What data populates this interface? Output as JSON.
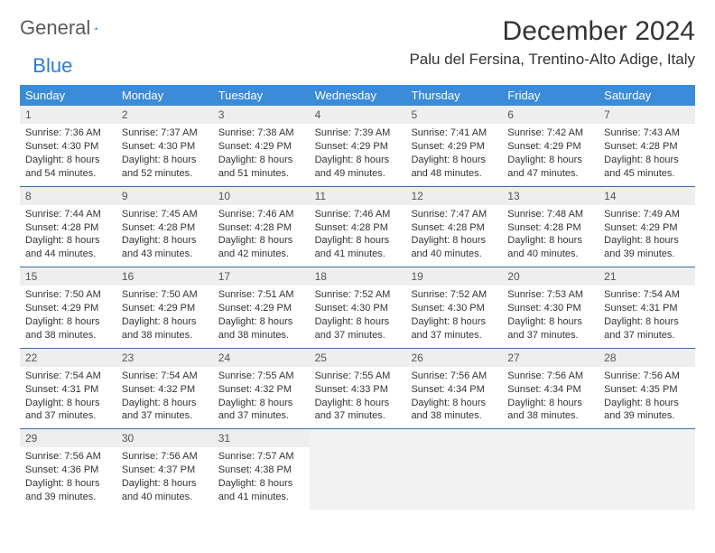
{
  "brand": {
    "part1": "General",
    "part2": "Blue"
  },
  "title": "December 2024",
  "location": "Palu del Fersina, Trentino-Alto Adige, Italy",
  "colors": {
    "header_bg": "#3a8bd8",
    "header_text": "#ffffff",
    "week_border": "#3a6ea5",
    "daynum_bg": "#eeeeee",
    "empty_bg": "#f2f2f2",
    "logo_gray": "#5a5a5a",
    "logo_blue": "#2b7cd3"
  },
  "daysOfWeek": [
    "Sunday",
    "Monday",
    "Tuesday",
    "Wednesday",
    "Thursday",
    "Friday",
    "Saturday"
  ],
  "weeks": [
    [
      {
        "n": "1",
        "sr": "7:36 AM",
        "ss": "4:30 PM",
        "dl": "8 hours and 54 minutes."
      },
      {
        "n": "2",
        "sr": "7:37 AM",
        "ss": "4:30 PM",
        "dl": "8 hours and 52 minutes."
      },
      {
        "n": "3",
        "sr": "7:38 AM",
        "ss": "4:29 PM",
        "dl": "8 hours and 51 minutes."
      },
      {
        "n": "4",
        "sr": "7:39 AM",
        "ss": "4:29 PM",
        "dl": "8 hours and 49 minutes."
      },
      {
        "n": "5",
        "sr": "7:41 AM",
        "ss": "4:29 PM",
        "dl": "8 hours and 48 minutes."
      },
      {
        "n": "6",
        "sr": "7:42 AM",
        "ss": "4:29 PM",
        "dl": "8 hours and 47 minutes."
      },
      {
        "n": "7",
        "sr": "7:43 AM",
        "ss": "4:28 PM",
        "dl": "8 hours and 45 minutes."
      }
    ],
    [
      {
        "n": "8",
        "sr": "7:44 AM",
        "ss": "4:28 PM",
        "dl": "8 hours and 44 minutes."
      },
      {
        "n": "9",
        "sr": "7:45 AM",
        "ss": "4:28 PM",
        "dl": "8 hours and 43 minutes."
      },
      {
        "n": "10",
        "sr": "7:46 AM",
        "ss": "4:28 PM",
        "dl": "8 hours and 42 minutes."
      },
      {
        "n": "11",
        "sr": "7:46 AM",
        "ss": "4:28 PM",
        "dl": "8 hours and 41 minutes."
      },
      {
        "n": "12",
        "sr": "7:47 AM",
        "ss": "4:28 PM",
        "dl": "8 hours and 40 minutes."
      },
      {
        "n": "13",
        "sr": "7:48 AM",
        "ss": "4:28 PM",
        "dl": "8 hours and 40 minutes."
      },
      {
        "n": "14",
        "sr": "7:49 AM",
        "ss": "4:29 PM",
        "dl": "8 hours and 39 minutes."
      }
    ],
    [
      {
        "n": "15",
        "sr": "7:50 AM",
        "ss": "4:29 PM",
        "dl": "8 hours and 38 minutes."
      },
      {
        "n": "16",
        "sr": "7:50 AM",
        "ss": "4:29 PM",
        "dl": "8 hours and 38 minutes."
      },
      {
        "n": "17",
        "sr": "7:51 AM",
        "ss": "4:29 PM",
        "dl": "8 hours and 38 minutes."
      },
      {
        "n": "18",
        "sr": "7:52 AM",
        "ss": "4:30 PM",
        "dl": "8 hours and 37 minutes."
      },
      {
        "n": "19",
        "sr": "7:52 AM",
        "ss": "4:30 PM",
        "dl": "8 hours and 37 minutes."
      },
      {
        "n": "20",
        "sr": "7:53 AM",
        "ss": "4:30 PM",
        "dl": "8 hours and 37 minutes."
      },
      {
        "n": "21",
        "sr": "7:54 AM",
        "ss": "4:31 PM",
        "dl": "8 hours and 37 minutes."
      }
    ],
    [
      {
        "n": "22",
        "sr": "7:54 AM",
        "ss": "4:31 PM",
        "dl": "8 hours and 37 minutes."
      },
      {
        "n": "23",
        "sr": "7:54 AM",
        "ss": "4:32 PM",
        "dl": "8 hours and 37 minutes."
      },
      {
        "n": "24",
        "sr": "7:55 AM",
        "ss": "4:32 PM",
        "dl": "8 hours and 37 minutes."
      },
      {
        "n": "25",
        "sr": "7:55 AM",
        "ss": "4:33 PM",
        "dl": "8 hours and 37 minutes."
      },
      {
        "n": "26",
        "sr": "7:56 AM",
        "ss": "4:34 PM",
        "dl": "8 hours and 38 minutes."
      },
      {
        "n": "27",
        "sr": "7:56 AM",
        "ss": "4:34 PM",
        "dl": "8 hours and 38 minutes."
      },
      {
        "n": "28",
        "sr": "7:56 AM",
        "ss": "4:35 PM",
        "dl": "8 hours and 39 minutes."
      }
    ],
    [
      {
        "n": "29",
        "sr": "7:56 AM",
        "ss": "4:36 PM",
        "dl": "8 hours and 39 minutes."
      },
      {
        "n": "30",
        "sr": "7:56 AM",
        "ss": "4:37 PM",
        "dl": "8 hours and 40 minutes."
      },
      {
        "n": "31",
        "sr": "7:57 AM",
        "ss": "4:38 PM",
        "dl": "8 hours and 41 minutes."
      },
      null,
      null,
      null,
      null
    ]
  ],
  "labels": {
    "sunrise": "Sunrise:",
    "sunset": "Sunset:",
    "daylight": "Daylight:"
  }
}
